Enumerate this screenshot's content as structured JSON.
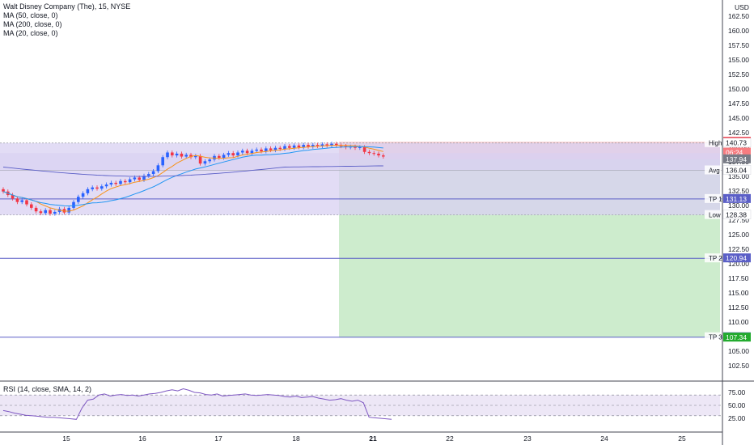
{
  "header": {
    "title": "Walt Disney Company (The), 15, NYSE",
    "indicators": [
      "MA (50, close, 0)",
      "MA (200, close, 0)",
      "MA (20, close, 0)"
    ],
    "currency": "USD"
  },
  "colors": {
    "up": "#2962ff",
    "down": "#f23645",
    "box": "#d8d0f2",
    "box_border": "#b9b0e6",
    "hline": "#5b5fc7",
    "target_zone": "#cdeccd",
    "stop_zone": "#f9cdd0",
    "ma20": "#f7931a",
    "ma50": "#2196f3",
    "ma200": "#5b5fc7",
    "rsi": "#7e57c2",
    "rsi_band": "#ede7f6"
  },
  "price_axis": {
    "ticks": [
      "162.50",
      "160.00",
      "157.50",
      "155.00",
      "152.50",
      "150.00",
      "147.50",
      "145.00",
      "142.50",
      "140.00",
      "137.50",
      "135.00",
      "132.50",
      "130.00",
      "127.50",
      "125.00",
      "122.50",
      "120.00",
      "117.50",
      "115.00",
      "112.50",
      "110.00",
      "107.50",
      "105.00",
      "102.50"
    ],
    "top_partial": "162.50",
    "badges": [
      {
        "label": "140.95",
        "price": 140.95,
        "bg": "#f23645",
        "fg": "#ffffff"
      },
      {
        "label": "140.73",
        "price": 140.73,
        "bg": "#ffffff",
        "fg": "#131722"
      },
      {
        "label": "06:24",
        "price": 139.1,
        "bg": "#f77c80",
        "fg": "#ffffff"
      },
      {
        "label": "137.94",
        "price": 137.94,
        "bg": "#787b86",
        "fg": "#ffffff"
      },
      {
        "label": "136.04",
        "price": 136.04,
        "bg": "#ffffff",
        "fg": "#131722"
      },
      {
        "label": "131.13",
        "price": 131.13,
        "bg": "#5b5fc7",
        "fg": "#ffffff"
      },
      {
        "label": "128.38",
        "price": 128.38,
        "bg": "#ffffff",
        "fg": "#131722"
      },
      {
        "label": "120.94",
        "price": 120.94,
        "bg": "#5b5fc7",
        "fg": "#ffffff"
      },
      {
        "label": "107.40",
        "price": 107.4,
        "bg": "#5b5fc7",
        "fg": "#ffffff"
      },
      {
        "label": "107.34",
        "price": 107.34,
        "bg": "#22ab2e",
        "fg": "#ffffff"
      }
    ],
    "line_labels": [
      {
        "label": "High",
        "price": 140.73
      },
      {
        "label": "Avg",
        "price": 136.04
      },
      {
        "label": "TP 1",
        "price": 131.13
      },
      {
        "label": "Low",
        "price": 128.38
      },
      {
        "label": "TP 2",
        "price": 120.94
      },
      {
        "label": "TP 3",
        "price": 107.4
      }
    ]
  },
  "time_axis": {
    "labels": [
      "15",
      "16",
      "17",
      "18",
      "21",
      "22",
      "23",
      "24",
      "25"
    ],
    "bold": "21"
  },
  "rsi": {
    "title": "RSI (14, close, SMA, 14, 2)",
    "ticks": [
      "75.00",
      "50.00",
      "25.00"
    ],
    "values": [
      40,
      38,
      35,
      33,
      31,
      30,
      29,
      28,
      27,
      27,
      26,
      25,
      24,
      23,
      45,
      60,
      62,
      70,
      72,
      68,
      70,
      71,
      69,
      70,
      68,
      70,
      72,
      73,
      75,
      78,
      80,
      78,
      82,
      79,
      75,
      74,
      71,
      70,
      72,
      68,
      69,
      70,
      71,
      72,
      70,
      69,
      70,
      71,
      70,
      69,
      67,
      66,
      68,
      65,
      66,
      67,
      64,
      62,
      60,
      61,
      63,
      60,
      58,
      60,
      55,
      27,
      26,
      25,
      24,
      23
    ]
  },
  "chart_data": {
    "type": "candlestick",
    "title": "Walt Disney Company (The), 15, NYSE",
    "xlabel": "",
    "ylabel": "USD",
    "ylim": [
      102.5,
      162.5
    ],
    "x_labels": [
      "15",
      "16",
      "17",
      "18",
      "21",
      "22",
      "23",
      "24",
      "25"
    ],
    "candles_close": [
      132.4,
      131.8,
      131.2,
      130.6,
      130.9,
      130.2,
      129.6,
      129.0,
      128.7,
      129.2,
      128.6,
      128.9,
      129.4,
      128.8,
      129.6,
      130.6,
      131.5,
      132.1,
      132.8,
      133.1,
      132.9,
      133.3,
      133.6,
      133.9,
      133.7,
      134.2,
      134.0,
      134.5,
      134.8,
      134.4,
      135.1,
      135.4,
      135.9,
      136.9,
      138.3,
      139.1,
      138.6,
      138.9,
      138.4,
      138.7,
      138.3,
      138.5,
      137.2,
      137.6,
      137.9,
      138.5,
      138.2,
      138.7,
      139.0,
      138.6,
      139.1,
      139.4,
      139.0,
      139.4,
      139.6,
      139.3,
      139.8,
      139.5,
      139.9,
      139.7,
      140.2,
      139.9,
      140.3,
      140.0,
      140.4,
      140.1,
      140.4,
      140.2,
      140.5,
      140.3,
      140.6,
      140.3,
      140.2,
      140.0,
      140.1,
      139.9,
      140.0,
      139.2,
      139.0,
      138.9,
      138.6,
      138.4
    ],
    "levels": {
      "High": 140.73,
      "Avg": 136.04,
      "TP 1": 131.13,
      "Low": 128.38,
      "TP 2": 120.94,
      "TP 3": 107.4,
      "Stop": 140.95,
      "Entry": 137.94
    },
    "series": [
      {
        "name": "MA (20, close, 0)",
        "type": "line"
      },
      {
        "name": "MA (50, close, 0)",
        "type": "line"
      },
      {
        "name": "MA (200, close, 0)",
        "type": "line"
      }
    ]
  }
}
